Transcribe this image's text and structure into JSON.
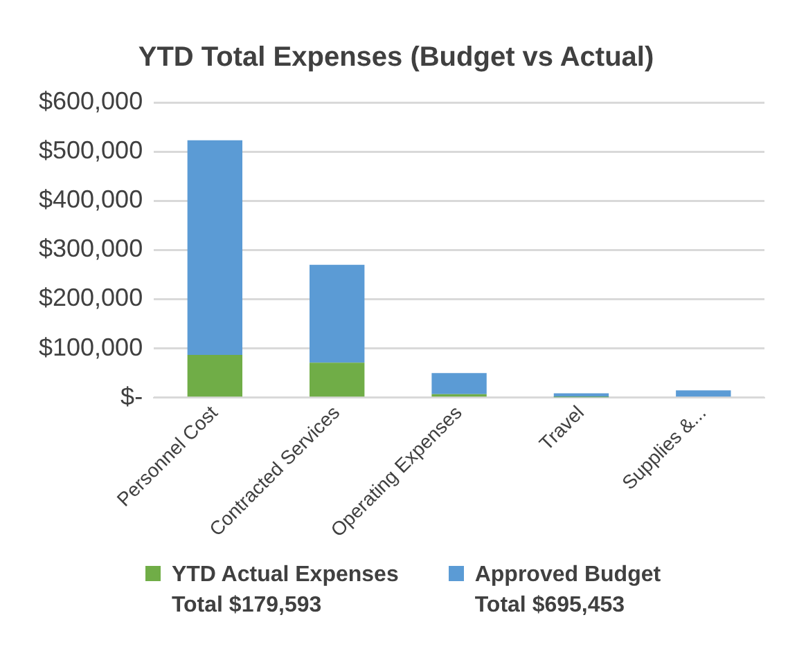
{
  "chart_data": {
    "type": "bar",
    "title": "YTD Total Expenses (Budget vs Actual)",
    "categories": [
      "Personnel Cost",
      "Contracted Services",
      "Operating Expenses",
      "Travel",
      "Supplies &..."
    ],
    "stacked": true,
    "series": [
      {
        "name": "YTD Actual Expenses\nTotal $179,593",
        "color": "#70ad47",
        "values": [
          87000,
          71000,
          7000,
          1000,
          null
        ]
      },
      {
        "name": "Approved Budget\nTotal $695,453",
        "color": "#5b9bd5",
        "values": [
          436000,
          199000,
          43000,
          8000,
          15000
        ]
      }
    ],
    "ylim": [
      0,
      600000
    ],
    "yticks": [
      {
        "value": 0,
        "label": "$-"
      },
      {
        "value": 100000,
        "label": "$100,000"
      },
      {
        "value": 200000,
        "label": "$200,000"
      },
      {
        "value": 300000,
        "label": "$300,000"
      },
      {
        "value": 400000,
        "label": "$400,000"
      },
      {
        "value": 500000,
        "label": "$500,000"
      },
      {
        "value": 600000,
        "label": "$600,000"
      }
    ],
    "grid": "y",
    "legend": "bottom"
  }
}
